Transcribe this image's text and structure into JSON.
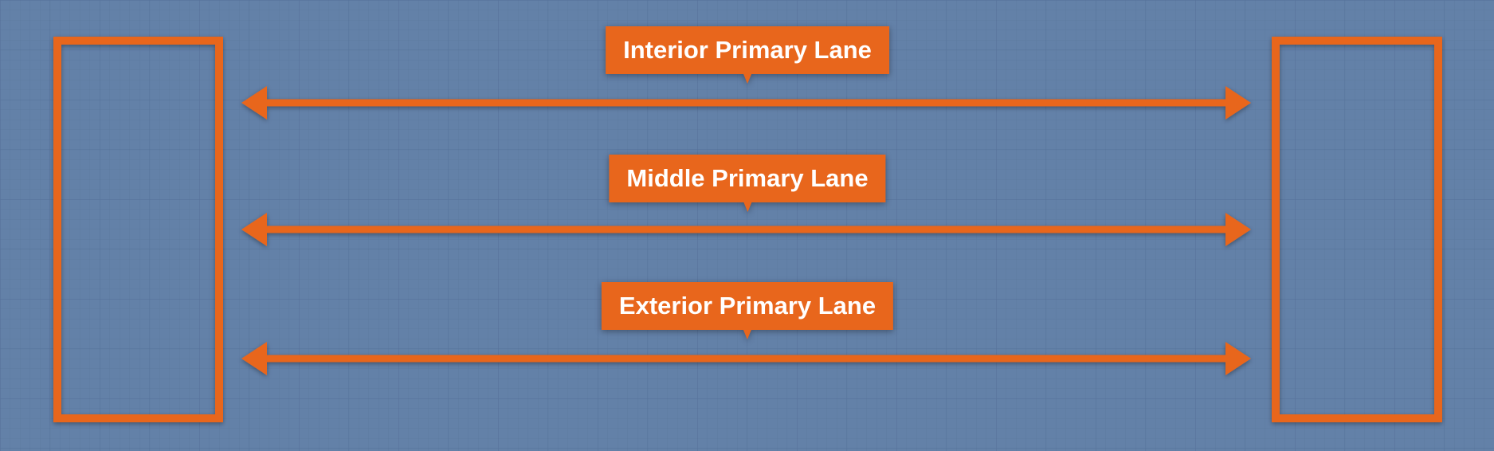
{
  "colors": {
    "background": "#6381a8",
    "grid_minor": "#5d7aa1",
    "grid_major": "#56729a",
    "accent": "#e8661c"
  },
  "diagram": {
    "nodes": [
      {
        "id": "left-box",
        "shape": "rectangle-outline"
      },
      {
        "id": "right-box",
        "shape": "rectangle-outline"
      }
    ],
    "lanes": [
      {
        "id": "interior",
        "label": "Interior Primary Lane",
        "arrow": "bidirectional"
      },
      {
        "id": "middle",
        "label": "Middle Primary Lane",
        "arrow": "bidirectional"
      },
      {
        "id": "exterior",
        "label": "Exterior Primary Lane",
        "arrow": "bidirectional"
      }
    ]
  }
}
